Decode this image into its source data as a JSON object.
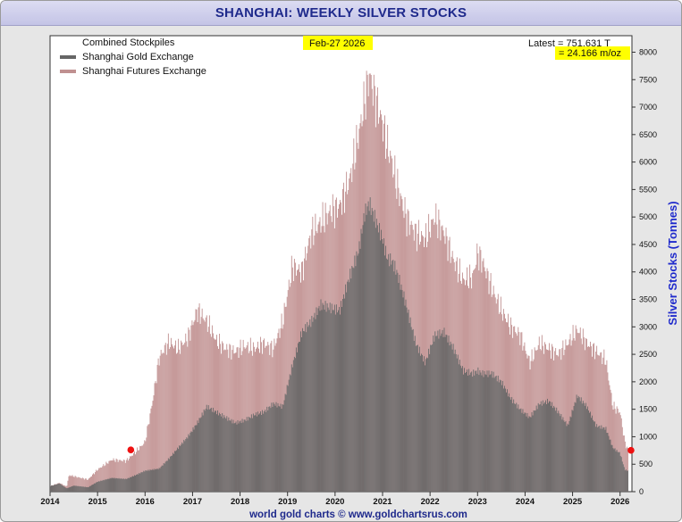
{
  "chart_data": {
    "type": "bar",
    "title": "SHANGHAI: WEEKLY SILVER STOCKS",
    "ylabel": "Silver Stocks (Tonnes)",
    "xlabel": "",
    "credit": "world gold charts © www.goldchartsrus.com",
    "date_label": "Feb-27  2026",
    "latest_line1": "Latest = 751.631 T",
    "latest_line2": "= 24.166 m/oz",
    "ylim": [
      0,
      8300
    ],
    "xlim": [
      2014.0,
      2026.25
    ],
    "yticks": [
      0,
      500,
      1000,
      1500,
      2000,
      2500,
      3000,
      3500,
      4000,
      4500,
      5000,
      5500,
      6000,
      6500,
      7000,
      7500,
      8000
    ],
    "xticks": [
      "2014",
      "2015",
      "2016",
      "2017",
      "2018",
      "2019",
      "2020",
      "2021",
      "2022",
      "2023",
      "2024",
      "2025",
      "2026"
    ],
    "legend": [
      {
        "label": "Combined Stockpiles",
        "color": ""
      },
      {
        "label": "Shanghai Gold Exchange",
        "color": "#666666"
      },
      {
        "label": "Shanghai Futures Exchange",
        "color": "#c09090"
      }
    ],
    "legend_position": "top-left",
    "grid": false,
    "series": [
      {
        "name": "Combined Stockpiles",
        "color": "#c09090",
        "points": [
          [
            2014.0,
            100
          ],
          [
            2014.2,
            160
          ],
          [
            2014.35,
            90
          ],
          [
            2014.4,
            300
          ],
          [
            2014.8,
            220
          ],
          [
            2015.0,
            400
          ],
          [
            2015.3,
            580
          ],
          [
            2015.6,
            560
          ],
          [
            2015.8,
            720
          ],
          [
            2016.0,
            900
          ],
          [
            2016.15,
            1600
          ],
          [
            2016.3,
            2450
          ],
          [
            2016.5,
            2720
          ],
          [
            2016.7,
            2600
          ],
          [
            2016.9,
            2800
          ],
          [
            2017.1,
            3300
          ],
          [
            2017.3,
            3100
          ],
          [
            2017.5,
            2750
          ],
          [
            2017.7,
            2600
          ],
          [
            2017.9,
            2550
          ],
          [
            2018.1,
            2650
          ],
          [
            2018.3,
            2600
          ],
          [
            2018.5,
            2700
          ],
          [
            2018.7,
            2600
          ],
          [
            2018.9,
            3100
          ],
          [
            2019.1,
            4100
          ],
          [
            2019.3,
            4000
          ],
          [
            2019.5,
            4700
          ],
          [
            2019.7,
            4900
          ],
          [
            2019.9,
            5100
          ],
          [
            2020.1,
            5200
          ],
          [
            2020.3,
            5650
          ],
          [
            2020.5,
            6500
          ],
          [
            2020.62,
            7100
          ],
          [
            2020.72,
            7600
          ],
          [
            2020.85,
            7150
          ],
          [
            2021.0,
            6700
          ],
          [
            2021.1,
            6300
          ],
          [
            2021.2,
            6000
          ],
          [
            2021.3,
            5600
          ],
          [
            2021.5,
            5000
          ],
          [
            2021.7,
            4700
          ],
          [
            2021.9,
            4600
          ],
          [
            2022.1,
            5000
          ],
          [
            2022.3,
            4700
          ],
          [
            2022.5,
            4200
          ],
          [
            2022.7,
            3850
          ],
          [
            2022.9,
            3900
          ],
          [
            2023.0,
            4350
          ],
          [
            2023.1,
            4200
          ],
          [
            2023.3,
            3700
          ],
          [
            2023.5,
            3300
          ],
          [
            2023.7,
            3000
          ],
          [
            2023.9,
            2850
          ],
          [
            2024.1,
            2350
          ],
          [
            2024.3,
            2700
          ],
          [
            2024.5,
            2600
          ],
          [
            2024.7,
            2500
          ],
          [
            2024.9,
            2700
          ],
          [
            2025.1,
            2950
          ],
          [
            2025.3,
            2700
          ],
          [
            2025.5,
            2550
          ],
          [
            2025.7,
            2400
          ],
          [
            2025.85,
            1550
          ],
          [
            2026.0,
            1450
          ],
          [
            2026.1,
            900
          ],
          [
            2026.17,
            751.631
          ]
        ]
      },
      {
        "name": "Shanghai Gold Exchange",
        "color": "#666666",
        "points": [
          [
            2014.0,
            100
          ],
          [
            2014.2,
            150
          ],
          [
            2014.35,
            60
          ],
          [
            2014.5,
            110
          ],
          [
            2014.8,
            80
          ],
          [
            2015.0,
            180
          ],
          [
            2015.3,
            250
          ],
          [
            2015.6,
            230
          ],
          [
            2015.8,
            300
          ],
          [
            2016.0,
            380
          ],
          [
            2016.3,
            420
          ],
          [
            2016.5,
            600
          ],
          [
            2016.7,
            800
          ],
          [
            2016.9,
            1000
          ],
          [
            2017.1,
            1250
          ],
          [
            2017.3,
            1550
          ],
          [
            2017.5,
            1450
          ],
          [
            2017.7,
            1350
          ],
          [
            2017.9,
            1250
          ],
          [
            2018.1,
            1300
          ],
          [
            2018.3,
            1400
          ],
          [
            2018.5,
            1450
          ],
          [
            2018.7,
            1600
          ],
          [
            2018.9,
            1550
          ],
          [
            2019.1,
            2300
          ],
          [
            2019.3,
            2900
          ],
          [
            2019.5,
            3100
          ],
          [
            2019.7,
            3400
          ],
          [
            2019.9,
            3350
          ],
          [
            2020.1,
            3300
          ],
          [
            2020.3,
            3900
          ],
          [
            2020.5,
            4400
          ],
          [
            2020.62,
            5050
          ],
          [
            2020.72,
            5250
          ],
          [
            2020.85,
            4950
          ],
          [
            2021.0,
            4600
          ],
          [
            2021.1,
            4250
          ],
          [
            2021.2,
            4200
          ],
          [
            2021.3,
            4000
          ],
          [
            2021.5,
            3400
          ],
          [
            2021.7,
            2700
          ],
          [
            2021.9,
            2350
          ],
          [
            2022.1,
            2850
          ],
          [
            2022.3,
            2900
          ],
          [
            2022.5,
            2600
          ],
          [
            2022.7,
            2200
          ],
          [
            2022.9,
            2150
          ],
          [
            2023.0,
            2200
          ],
          [
            2023.1,
            2150
          ],
          [
            2023.3,
            2150
          ],
          [
            2023.5,
            2000
          ],
          [
            2023.7,
            1700
          ],
          [
            2023.9,
            1500
          ],
          [
            2024.1,
            1350
          ],
          [
            2024.3,
            1600
          ],
          [
            2024.5,
            1650
          ],
          [
            2024.7,
            1450
          ],
          [
            2024.9,
            1200
          ],
          [
            2025.1,
            1750
          ],
          [
            2025.3,
            1550
          ],
          [
            2025.5,
            1200
          ],
          [
            2025.7,
            1150
          ],
          [
            2025.85,
            800
          ],
          [
            2026.0,
            700
          ],
          [
            2026.1,
            400
          ],
          [
            2026.17,
            380
          ]
        ]
      }
    ],
    "markers": [
      {
        "x": 2015.7,
        "y": 760,
        "color": "#ee1111"
      },
      {
        "x": 2026.23,
        "y": 751.631,
        "color": "#ee1111"
      }
    ]
  }
}
